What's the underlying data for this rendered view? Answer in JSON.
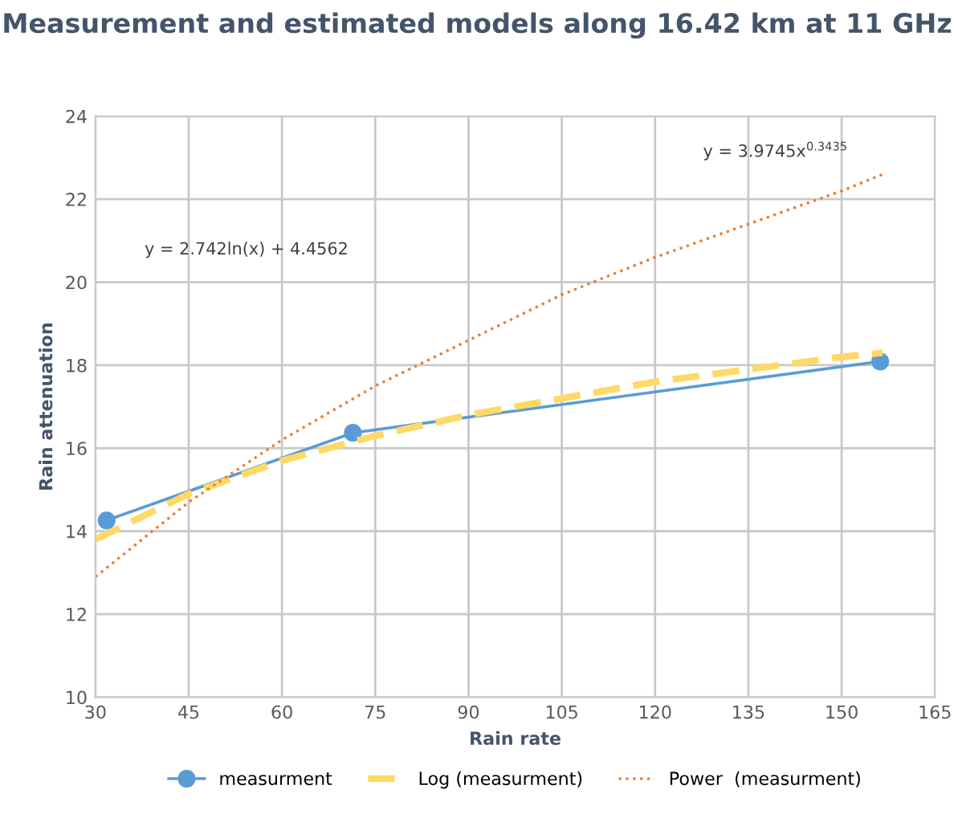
{
  "chart_data": {
    "type": "line",
    "title": "Measurement and estimated models along 16.42 km at 11 GHz",
    "xlabel": "Rain rate",
    "ylabel": "Rain attenuation",
    "xlim": [
      30,
      165
    ],
    "xticks": [
      30,
      45,
      60,
      75,
      90,
      105,
      120,
      135,
      150,
      165
    ],
    "ylim": [
      10,
      24
    ],
    "yticks": [
      10,
      12,
      14,
      16,
      18,
      20,
      22,
      24
    ],
    "grid": true,
    "legend": "bottom",
    "annotations": [
      "y = 2.742ln(x) + 4.4562",
      "y = 3.9745x$^{0.3435}$"
    ],
    "series": [
      {
        "name": "measurment",
        "color": "#5b9bd5",
        "marker": "circle",
        "line_style": "solid",
        "x": [
          31.8,
          71.4,
          156.2
        ],
        "values": [
          14.26,
          16.37,
          18.09
        ]
      },
      {
        "name": "Log (measurment)",
        "color": "#ffd966",
        "marker": "none",
        "line_style": "dashed",
        "x": [
          30,
          45,
          60,
          75,
          90,
          105,
          120,
          135,
          150,
          156.6
        ],
        "values": [
          13.8,
          14.9,
          15.7,
          16.3,
          16.8,
          17.2,
          17.6,
          17.9,
          18.2,
          18.3
        ]
      },
      {
        "name": "Power  (measurment)",
        "color": "#ed7d31",
        "marker": "none",
        "line_style": "dotted",
        "x": [
          30,
          45,
          60,
          75,
          90,
          105,
          120,
          135,
          150,
          156.6
        ],
        "values": [
          12.9,
          14.7,
          16.2,
          17.5,
          18.6,
          19.7,
          20.6,
          21.4,
          22.2,
          22.6
        ]
      }
    ]
  }
}
